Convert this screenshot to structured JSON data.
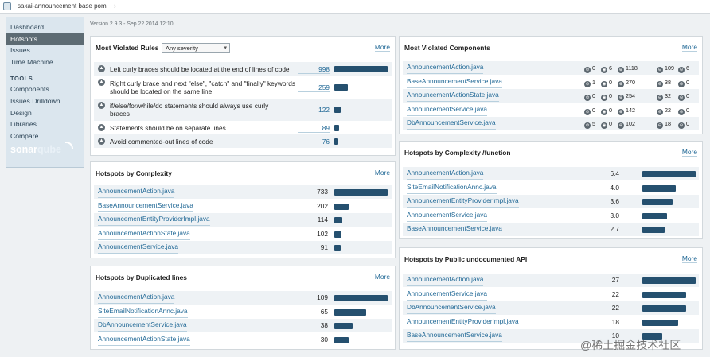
{
  "breadcrumb": {
    "project": "sakai-announcement base pom"
  },
  "version": "Version 2.9.3 - Sep 22 2014 12:10",
  "sidebar": {
    "items": [
      {
        "label": "Dashboard"
      },
      {
        "label": "Hotspots"
      },
      {
        "label": "Issues"
      },
      {
        "label": "Time Machine"
      }
    ],
    "tools_heading": "TOOLS",
    "tools": [
      {
        "label": "Components"
      },
      {
        "label": "Issues Drilldown"
      },
      {
        "label": "Design"
      },
      {
        "label": "Libraries"
      },
      {
        "label": "Compare"
      }
    ],
    "logo": {
      "pre": "sonar",
      "post": "qube"
    }
  },
  "more_label": "More",
  "most_violated_rules": {
    "title": "Most Violated Rules",
    "severity_select": "Any severity",
    "rows": [
      {
        "lines": [
          "Left curly braces should be located at the end of lines of code"
        ],
        "value": "998",
        "num": 998
      },
      {
        "lines": [
          "Right curly brace and next \"else\", \"catch\" and \"finally\" keywords",
          "should be located on the same line"
        ],
        "value": "259",
        "num": 259
      },
      {
        "lines": [
          "if/else/for/while/do statements should always use curly",
          "braces"
        ],
        "value": "122",
        "num": 122
      },
      {
        "lines": [
          "Statements should be on separate lines"
        ],
        "value": "89",
        "num": 89
      },
      {
        "lines": [
          "Avoid commented-out lines of code"
        ],
        "value": "76",
        "num": 76
      }
    ]
  },
  "hotspots_complexity": {
    "title": "Hotspots by Complexity",
    "rows": [
      {
        "name": "AnnouncementAction.java",
        "value": "733",
        "num": 733
      },
      {
        "name": "BaseAnnouncementService.java",
        "value": "202",
        "num": 202
      },
      {
        "name": "AnnouncementEntityProviderImpl.java",
        "value": "114",
        "num": 114
      },
      {
        "name": "AnnouncementActionState.java",
        "value": "102",
        "num": 102
      },
      {
        "name": "AnnouncementService.java",
        "value": "91",
        "num": 91
      }
    ]
  },
  "hotspots_duplicated": {
    "title": "Hotspots by Duplicated lines",
    "rows": [
      {
        "name": "AnnouncementAction.java",
        "value": "109",
        "num": 109
      },
      {
        "name": "SiteEmailNotificationAnnc.java",
        "value": "65",
        "num": 65
      },
      {
        "name": "DbAnnouncementService.java",
        "value": "38",
        "num": 38
      },
      {
        "name": "AnnouncementActionState.java",
        "value": "30",
        "num": 30
      }
    ]
  },
  "most_violated_components": {
    "title": "Most Violated Components",
    "rows": [
      {
        "name": "AnnouncementAction.java",
        "blocker": "0",
        "critical": "6",
        "major": "1118",
        "minor": "109",
        "info": "6"
      },
      {
        "name": "BaseAnnouncementService.java",
        "blocker": "1",
        "critical": "0",
        "major": "270",
        "minor": "38",
        "info": "0"
      },
      {
        "name": "AnnouncementActionState.java",
        "blocker": "0",
        "critical": "0",
        "major": "254",
        "minor": "32",
        "info": "0"
      },
      {
        "name": "AnnouncementService.java",
        "blocker": "0",
        "critical": "0",
        "major": "142",
        "minor": "22",
        "info": "0"
      },
      {
        "name": "DbAnnouncementService.java",
        "blocker": "5",
        "critical": "0",
        "major": "102",
        "minor": "18",
        "info": "0"
      }
    ]
  },
  "hotspots_complexity_function": {
    "title": "Hotspots by Complexity /function",
    "rows": [
      {
        "name": "AnnouncementAction.java",
        "value": "6.4",
        "num": 6.4
      },
      {
        "name": "SiteEmailNotificationAnnc.java",
        "value": "4.0",
        "num": 4.0
      },
      {
        "name": "AnnouncementEntityProviderImpl.java",
        "value": "3.6",
        "num": 3.6
      },
      {
        "name": "AnnouncementService.java",
        "value": "3.0",
        "num": 3.0
      },
      {
        "name": "BaseAnnouncementService.java",
        "value": "2.7",
        "num": 2.7
      }
    ]
  },
  "hotspots_undocumented_api": {
    "title": "Hotspots by Public undocumented API",
    "rows": [
      {
        "name": "AnnouncementAction.java",
        "value": "27",
        "num": 27
      },
      {
        "name": "AnnouncementService.java",
        "value": "22",
        "num": 22
      },
      {
        "name": "DbAnnouncementService.java",
        "value": "22",
        "num": 22
      },
      {
        "name": "AnnouncementEntityProviderImpl.java",
        "value": "18",
        "num": 18
      },
      {
        "name": "BaseAnnouncementService.java",
        "value": "10",
        "num": 10
      }
    ]
  },
  "watermark": "@稀土掘金技术社区",
  "colors": {
    "bar": "#25506f",
    "link": "#236a97",
    "nav_active": "#5d6b73",
    "sidebar_bg": "#dbe6ee"
  }
}
